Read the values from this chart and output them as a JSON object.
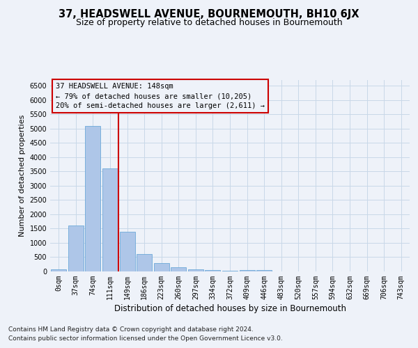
{
  "title": "37, HEADSWELL AVENUE, BOURNEMOUTH, BH10 6JX",
  "subtitle": "Size of property relative to detached houses in Bournemouth",
  "xlabel": "Distribution of detached houses by size in Bournemouth",
  "ylabel": "Number of detached properties",
  "footnote1": "Contains HM Land Registry data © Crown copyright and database right 2024.",
  "footnote2": "Contains public sector information licensed under the Open Government Licence v3.0.",
  "annotation_line1": "37 HEADSWELL AVENUE: 148sqm",
  "annotation_line2": "← 79% of detached houses are smaller (10,205)",
  "annotation_line3": "20% of semi-detached houses are larger (2,611) →",
  "bar_color": "#aec6e8",
  "bar_edge_color": "#5a9fd4",
  "grid_color": "#c8d8e8",
  "vline_color": "#cc0000",
  "annotation_box_color": "#cc0000",
  "background_color": "#eef2f9",
  "categories": [
    "0sqm",
    "37sqm",
    "74sqm",
    "111sqm",
    "149sqm",
    "186sqm",
    "223sqm",
    "260sqm",
    "297sqm",
    "334sqm",
    "372sqm",
    "409sqm",
    "446sqm",
    "483sqm",
    "520sqm",
    "557sqm",
    "594sqm",
    "632sqm",
    "669sqm",
    "706sqm",
    "743sqm"
  ],
  "values": [
    70,
    1620,
    5100,
    3600,
    1400,
    600,
    300,
    150,
    80,
    50,
    30,
    50,
    50,
    0,
    0,
    0,
    0,
    0,
    0,
    0,
    0
  ],
  "ylim": [
    0,
    6700
  ],
  "yticks": [
    0,
    500,
    1000,
    1500,
    2000,
    2500,
    3000,
    3500,
    4000,
    4500,
    5000,
    5500,
    6000,
    6500
  ],
  "vline_x_index": 4,
  "title_fontsize": 10.5,
  "subtitle_fontsize": 9,
  "xlabel_fontsize": 8.5,
  "ylabel_fontsize": 8,
  "tick_fontsize": 7,
  "annotation_fontsize": 7.5,
  "footnote_fontsize": 6.5
}
